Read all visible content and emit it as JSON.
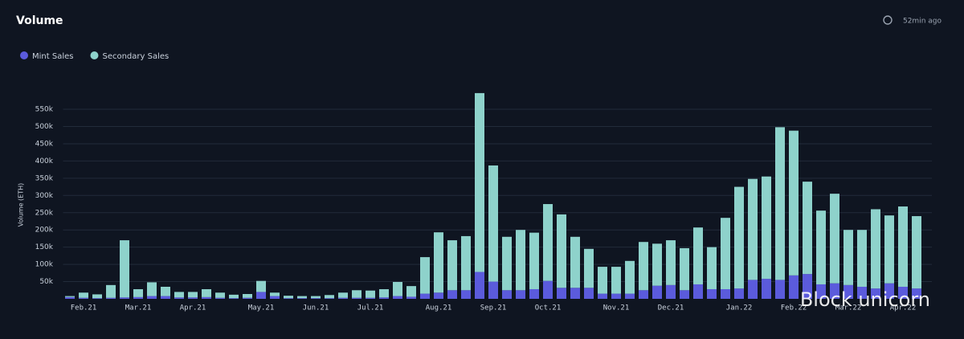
{
  "chart_data": {
    "type": "stacked_bar",
    "title": "Volume",
    "updated": "52min ago",
    "y_label": "Volume (ETH)",
    "watermark": "Block unicorn",
    "categories": [
      null,
      "Feb.21",
      null,
      null,
      null,
      "Mar.21",
      null,
      null,
      null,
      "Apr.21",
      null,
      null,
      null,
      null,
      "May.21",
      null,
      null,
      null,
      "Jun.21",
      null,
      null,
      null,
      "Jul.21",
      null,
      null,
      null,
      null,
      "Aug.21",
      null,
      null,
      null,
      "Sep.21",
      null,
      null,
      null,
      "Oct.21",
      null,
      null,
      null,
      null,
      "Nov.21",
      null,
      null,
      null,
      "Dec.21",
      null,
      null,
      null,
      null,
      "Jan.22",
      null,
      null,
      null,
      "Feb.22",
      null,
      null,
      null,
      "Mar.22",
      null,
      null,
      null,
      "Apr.22",
      null
    ],
    "series": [
      {
        "name": "Mint Sales",
        "color": "#5b5bdc",
        "values": [
          5000,
          3000,
          2000,
          3000,
          4000,
          5000,
          8000,
          8000,
          4000,
          4000,
          5000,
          3000,
          2000,
          3000,
          20000,
          8000,
          2000,
          2000,
          2000,
          2000,
          3000,
          3000,
          3000,
          4000,
          8000,
          6000,
          15000,
          18000,
          25000,
          25000,
          78000,
          50000,
          25000,
          25000,
          28000,
          52000,
          32000,
          32000,
          32000,
          15000,
          15000,
          15000,
          25000,
          38000,
          40000,
          25000,
          42000,
          28000,
          28000,
          30000,
          55000,
          58000,
          55000,
          68000,
          72000,
          42000,
          45000,
          40000,
          35000,
          30000,
          45000,
          35000,
          30000
        ]
      },
      {
        "name": "Secondary Sales",
        "color": "#8ed2cb",
        "values": [
          3000,
          15000,
          11000,
          37000,
          166000,
          23000,
          40000,
          27000,
          16000,
          16000,
          23000,
          15000,
          10000,
          11000,
          32000,
          10000,
          7000,
          6000,
          6000,
          9000,
          15000,
          22000,
          21000,
          24000,
          41000,
          31000,
          106000,
          175000,
          145000,
          157000,
          519000,
          337000,
          155000,
          175000,
          164000,
          223000,
          213000,
          148000,
          113000,
          78000,
          78000,
          95000,
          140000,
          122000,
          130000,
          122000,
          165000,
          122000,
          207000,
          295000,
          293000,
          297000,
          443000,
          420000,
          268000,
          214000,
          260000,
          160000,
          165000,
          230000,
          197000,
          233000,
          210000
        ]
      }
    ],
    "ylim": [
      0,
      600000
    ],
    "yticks": [
      {
        "value": 50000,
        "label": "50k"
      },
      {
        "value": 100000,
        "label": "100k"
      },
      {
        "value": 150000,
        "label": "150k"
      },
      {
        "value": 200000,
        "label": "200k"
      },
      {
        "value": 250000,
        "label": "250k"
      },
      {
        "value": 300000,
        "label": "300k"
      },
      {
        "value": 350000,
        "label": "350k"
      },
      {
        "value": 400000,
        "label": "400k"
      },
      {
        "value": 450000,
        "label": "450k"
      },
      {
        "value": 500000,
        "label": "500k"
      },
      {
        "value": 550000,
        "label": "550k"
      }
    ],
    "grid": true,
    "legend": "top-left"
  }
}
